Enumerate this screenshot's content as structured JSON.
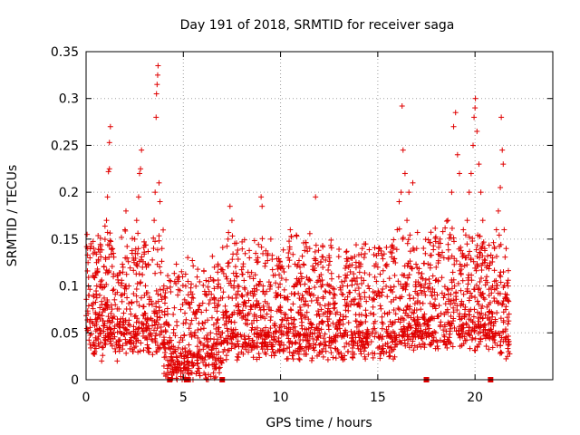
{
  "chart_data": {
    "type": "scatter",
    "title": "Day 191 of 2018, SRMTID for receiver saga",
    "xlabel": "GPS time / hours",
    "ylabel": "SRMTID / TECUs",
    "xlim": [
      0,
      24
    ],
    "ylim": [
      0,
      0.35
    ],
    "xticks": [
      0,
      5,
      10,
      15,
      20
    ],
    "xtick_labels": [
      "0",
      "5",
      "10",
      "15",
      "20"
    ],
    "yticks": [
      0,
      0.05,
      0.1,
      0.15,
      0.2,
      0.25,
      0.3,
      0.35
    ],
    "ytick_labels": [
      "0",
      "0.05",
      "0.1",
      "0.15",
      "0.2",
      "0.25",
      "0.3",
      "0.35"
    ],
    "grid": true,
    "marker": "plus",
    "color": "#e00000",
    "series": [
      {
        "name": "SRMTID",
        "points": [
          [
            0.05,
            0.155
          ],
          [
            0.08,
            0.14
          ],
          [
            0.1,
            0.125
          ],
          [
            0.12,
            0.1
          ],
          [
            0.15,
            0.09
          ],
          [
            0.2,
            0.13
          ],
          [
            0.25,
            0.145
          ],
          [
            0.3,
            0.08
          ],
          [
            0.35,
            0.06
          ],
          [
            0.4,
            0.04
          ],
          [
            0.45,
            0.03
          ],
          [
            0.5,
            0.07
          ],
          [
            0.55,
            0.1
          ],
          [
            0.6,
            0.115
          ],
          [
            0.7,
            0.09
          ],
          [
            0.75,
            0.05
          ],
          [
            0.8,
            0.02
          ],
          [
            0.9,
            0.075
          ],
          [
            1.0,
            0.13
          ],
          [
            1.05,
            0.17
          ],
          [
            1.1,
            0.195
          ],
          [
            1.15,
            0.222
          ],
          [
            1.2,
            0.225
          ],
          [
            1.2,
            0.253
          ],
          [
            1.25,
            0.27
          ],
          [
            1.3,
            0.14
          ],
          [
            1.4,
            0.11
          ],
          [
            1.5,
            0.08
          ],
          [
            1.55,
            0.04
          ],
          [
            1.6,
            0.02
          ],
          [
            1.7,
            0.06
          ],
          [
            1.8,
            0.09
          ],
          [
            1.9,
            0.12
          ],
          [
            2.0,
            0.16
          ],
          [
            2.05,
            0.18
          ],
          [
            2.1,
            0.13
          ],
          [
            2.2,
            0.1
          ],
          [
            2.3,
            0.07
          ],
          [
            2.4,
            0.03
          ],
          [
            2.5,
            0.15
          ],
          [
            2.6,
            0.17
          ],
          [
            2.7,
            0.195
          ],
          [
            2.75,
            0.22
          ],
          [
            2.8,
            0.225
          ],
          [
            2.85,
            0.245
          ],
          [
            2.9,
            0.12
          ],
          [
            3.0,
            0.09
          ],
          [
            3.1,
            0.06
          ],
          [
            3.2,
            0.03
          ],
          [
            3.3,
            0.05
          ],
          [
            3.4,
            0.08
          ],
          [
            3.5,
            0.17
          ],
          [
            3.55,
            0.2
          ],
          [
            3.6,
            0.28
          ],
          [
            3.62,
            0.305
          ],
          [
            3.65,
            0.315
          ],
          [
            3.68,
            0.325
          ],
          [
            3.7,
            0.335
          ],
          [
            3.75,
            0.21
          ],
          [
            3.8,
            0.19
          ],
          [
            3.9,
            0.14
          ],
          [
            4.0,
            0.1
          ],
          [
            4.1,
            0.06
          ],
          [
            4.2,
            0.04
          ],
          [
            4.3,
            0.02
          ],
          [
            4.4,
            0.035
          ],
          [
            4.5,
            0.05
          ],
          [
            4.6,
            0.03
          ],
          [
            4.7,
            0.02
          ],
          [
            4.8,
            0.04
          ],
          [
            5.0,
            0.06
          ],
          [
            5.1,
            0.03
          ],
          [
            5.2,
            0.01
          ],
          [
            5.4,
            0.05
          ],
          [
            5.6,
            0.07
          ],
          [
            5.8,
            0.03
          ],
          [
            6.0,
            0.06
          ],
          [
            6.2,
            0.09
          ],
          [
            6.4,
            0.05
          ],
          [
            6.6,
            0.12
          ],
          [
            6.8,
            0.08
          ],
          [
            7.0,
            0.05
          ],
          [
            7.2,
            0.11
          ],
          [
            7.3,
            0.15
          ],
          [
            7.4,
            0.185
          ],
          [
            7.5,
            0.17
          ],
          [
            7.6,
            0.1
          ],
          [
            7.8,
            0.07
          ],
          [
            8.0,
            0.09
          ],
          [
            8.2,
            0.06
          ],
          [
            8.4,
            0.13
          ],
          [
            8.6,
            0.08
          ],
          [
            8.8,
            0.05
          ],
          [
            9.0,
            0.195
          ],
          [
            9.05,
            0.185
          ],
          [
            9.1,
            0.1
          ],
          [
            9.3,
            0.07
          ],
          [
            9.5,
            0.15
          ],
          [
            9.7,
            0.06
          ],
          [
            10.0,
            0.09
          ],
          [
            10.2,
            0.07
          ],
          [
            10.5,
            0.16
          ],
          [
            10.7,
            0.1
          ],
          [
            11.0,
            0.12
          ],
          [
            11.2,
            0.08
          ],
          [
            11.5,
            0.14
          ],
          [
            11.7,
            0.09
          ],
          [
            11.8,
            0.195
          ],
          [
            12.0,
            0.11
          ],
          [
            12.2,
            0.07
          ],
          [
            12.5,
            0.13
          ],
          [
            12.8,
            0.09
          ],
          [
            13.0,
            0.06
          ],
          [
            13.2,
            0.1
          ],
          [
            13.5,
            0.12
          ],
          [
            13.8,
            0.05
          ],
          [
            14.0,
            0.08
          ],
          [
            14.2,
            0.14
          ],
          [
            14.5,
            0.1
          ],
          [
            14.8,
            0.06
          ],
          [
            15.0,
            0.12
          ],
          [
            15.2,
            0.09
          ],
          [
            15.5,
            0.07
          ],
          [
            15.8,
            0.14
          ],
          [
            16.0,
            0.16
          ],
          [
            16.1,
            0.19
          ],
          [
            16.2,
            0.2
          ],
          [
            16.25,
            0.292
          ],
          [
            16.3,
            0.245
          ],
          [
            16.4,
            0.22
          ],
          [
            16.5,
            0.17
          ],
          [
            16.6,
            0.2
          ],
          [
            16.8,
            0.21
          ],
          [
            17.0,
            0.14
          ],
          [
            17.2,
            0.1
          ],
          [
            17.4,
            0.07
          ],
          [
            17.6,
            0.05
          ],
          [
            17.8,
            0.09
          ],
          [
            18.0,
            0.12
          ],
          [
            18.2,
            0.15
          ],
          [
            18.4,
            0.13
          ],
          [
            18.6,
            0.17
          ],
          [
            18.8,
            0.2
          ],
          [
            18.9,
            0.27
          ],
          [
            19.0,
            0.285
          ],
          [
            19.1,
            0.24
          ],
          [
            19.2,
            0.22
          ],
          [
            19.4,
            0.16
          ],
          [
            19.5,
            0.13
          ],
          [
            19.6,
            0.17
          ],
          [
            19.7,
            0.2
          ],
          [
            19.8,
            0.22
          ],
          [
            19.9,
            0.25
          ],
          [
            19.95,
            0.28
          ],
          [
            20.0,
            0.29
          ],
          [
            20.02,
            0.3
          ],
          [
            20.1,
            0.265
          ],
          [
            20.2,
            0.23
          ],
          [
            20.3,
            0.2
          ],
          [
            20.4,
            0.17
          ],
          [
            20.5,
            0.14
          ],
          [
            20.6,
            0.11
          ],
          [
            20.7,
            0.08
          ],
          [
            20.8,
            0.06
          ],
          [
            20.9,
            0.1
          ],
          [
            21.0,
            0.14
          ],
          [
            21.1,
            0.16
          ],
          [
            21.2,
            0.18
          ],
          [
            21.3,
            0.205
          ],
          [
            21.35,
            0.28
          ],
          [
            21.4,
            0.245
          ],
          [
            21.45,
            0.23
          ],
          [
            21.5,
            0.16
          ],
          [
            21.6,
            0.14
          ],
          [
            21.7,
            0.1
          ],
          [
            21.75,
            0.07
          ]
        ]
      }
    ],
    "zero_markers_x": [
      4.3,
      5.2,
      7.0,
      17.5,
      20.8
    ]
  }
}
